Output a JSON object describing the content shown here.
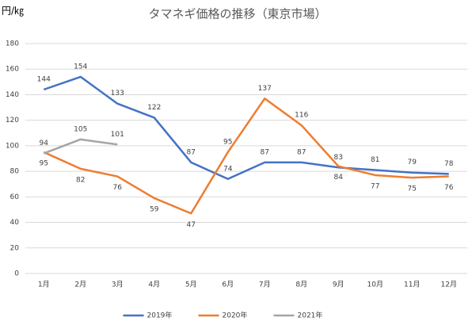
{
  "chart_data": {
    "type": "line",
    "title": "タマネギ価格の推移（東京市場）",
    "y_label": "円/㎏",
    "categories": [
      "1月",
      "2月",
      "3月",
      "4月",
      "5月",
      "6月",
      "7月",
      "8月",
      "9月",
      "10月",
      "11月",
      "12月"
    ],
    "series": [
      {
        "name": "2019年",
        "color": "#4472c4",
        "values": [
          144,
          154,
          133,
          122,
          87,
          74,
          87,
          87,
          83,
          81,
          79,
          78
        ]
      },
      {
        "name": "2020年",
        "color": "#ed7d31",
        "values": [
          95,
          82,
          76,
          59,
          47,
          95,
          137,
          116,
          84,
          77,
          75,
          76
        ]
      },
      {
        "name": "2021年",
        "color": "#a5a5a5",
        "values": [
          94,
          105,
          101,
          null,
          null,
          null,
          null,
          null,
          null,
          null,
          null,
          null
        ]
      }
    ],
    "ylim": [
      0,
      180
    ],
    "yticks": [
      0,
      20,
      40,
      60,
      80,
      100,
      120,
      140,
      160,
      180
    ],
    "grid": true,
    "legend": "bottom"
  }
}
